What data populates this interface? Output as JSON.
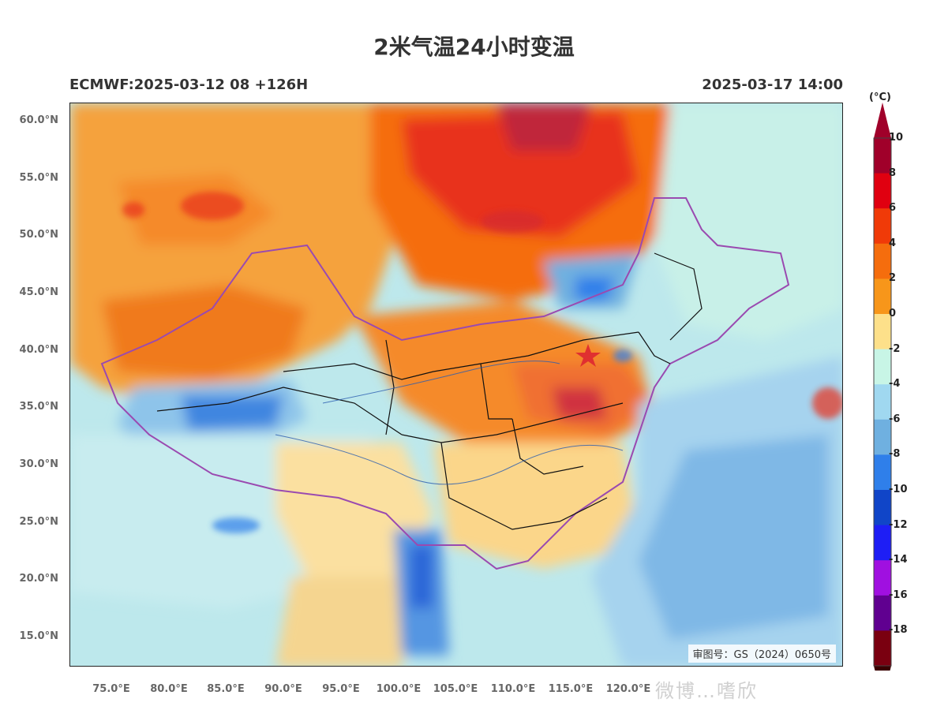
{
  "title": "2米气温24小时变温",
  "model_run": "ECMWF:2025-03-12 08 +126H",
  "valid_time": "2025-03-17 14:00",
  "approval_stamp": "审图号：GS（2024）0650号",
  "watermark": "微博…嗜欣",
  "axes": {
    "lat_ticks": [
      "60.0°N",
      "55.0°N",
      "50.0°N",
      "45.0°N",
      "40.0°N",
      "35.0°N",
      "30.0°N",
      "25.0°N",
      "20.0°N",
      "15.0°N"
    ],
    "lon_ticks": [
      "75.0°E",
      "80.0°E",
      "85.0°E",
      "90.0°E",
      "95.0°E",
      "100.0°E",
      "105.0°E",
      "110.0°E",
      "115.0°E",
      "120.0°E"
    ]
  },
  "colorbar": {
    "unit": "(°C)",
    "labels": [
      "10",
      "8",
      "6",
      "4",
      "2",
      "0",
      "-2",
      "-4",
      "-6",
      "-8",
      "-10",
      "-12",
      "-14",
      "-16",
      "-18"
    ],
    "colors": [
      "#a0002a",
      "#e00010",
      "#f03a08",
      "#f56d0d",
      "#f7961a",
      "#fde08a",
      "#c8f5e6",
      "#a0d8f0",
      "#6fb0e0",
      "#2f7fea",
      "#1045c8",
      "#1e1ef5",
      "#a010e0",
      "#600090",
      "#7a0010"
    ]
  },
  "map": {
    "marker": "capital-star"
  }
}
